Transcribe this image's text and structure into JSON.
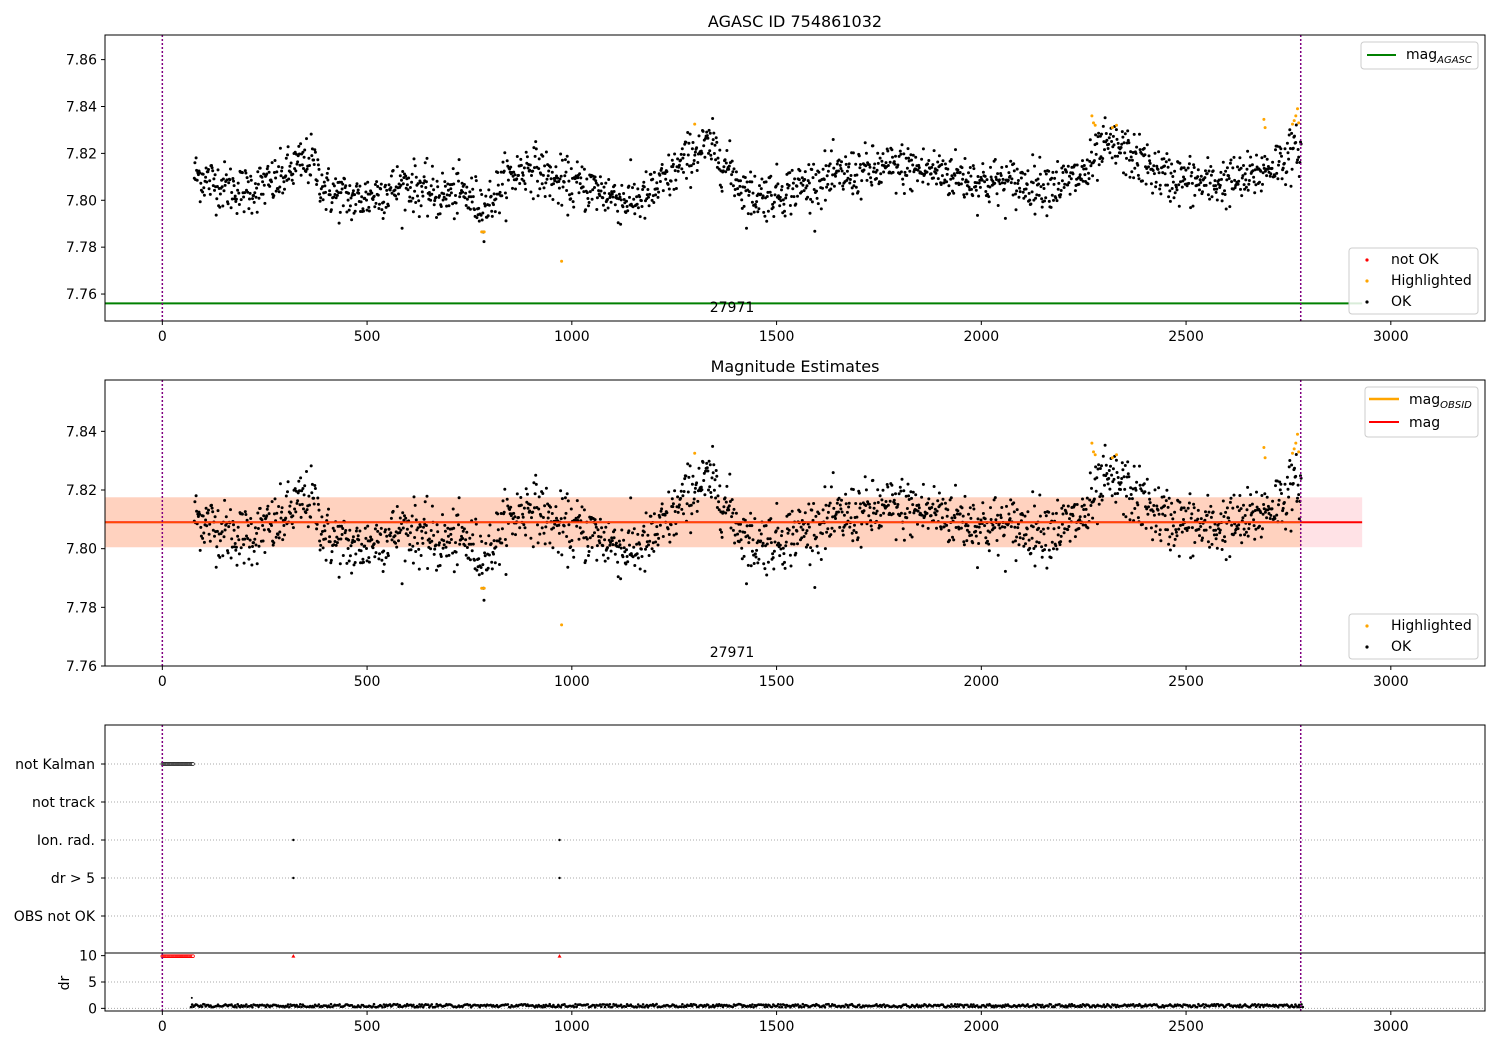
{
  "chart_data": [
    {
      "type": "scatter",
      "title": "AGASC ID 754861032",
      "xlim": [
        -140,
        3230
      ],
      "ylim": [
        7.7485,
        7.8705
      ],
      "xticks": [
        "0",
        "500",
        "1000",
        "1500",
        "2000",
        "2500",
        "3000"
      ],
      "xtick_values": [
        0,
        500,
        1000,
        1500,
        2000,
        2500,
        3000
      ],
      "yticks": [
        "7.76",
        "7.78",
        "7.80",
        "7.82",
        "7.84",
        "7.86"
      ],
      "ytick_values": [
        7.76,
        7.78,
        7.8,
        7.82,
        7.84,
        7.86
      ],
      "obsid_label": "27971",
      "obsid_label_x": 1390,
      "vlines": [
        0,
        2780
      ],
      "mag_agasc": 7.756,
      "legend_lines": [
        {
          "label": "mag",
          "sub": "AGASC",
          "color": "#008000"
        }
      ],
      "legend_points": [
        {
          "label": "not OK",
          "color": "#ff0000"
        },
        {
          "label": "Highlighted",
          "color": "#ffa500"
        },
        {
          "label": "OK",
          "color": "#000000"
        }
      ]
    },
    {
      "type": "scatter",
      "title": "Magnitude Estimates",
      "xlim": [
        -140,
        3230
      ],
      "ylim": [
        7.76,
        7.8575
      ],
      "xticks": [
        "0",
        "500",
        "1000",
        "1500",
        "2000",
        "2500",
        "3000"
      ],
      "xtick_values": [
        0,
        500,
        1000,
        1500,
        2000,
        2500,
        3000
      ],
      "yticks": [
        "7.76",
        "7.78",
        "7.80",
        "7.82",
        "7.84"
      ],
      "ytick_values": [
        7.76,
        7.78,
        7.8,
        7.82,
        7.84
      ],
      "obsid_label": "27971",
      "obsid_label_x": 1390,
      "vlines": [
        0,
        2780
      ],
      "mag": 7.809,
      "band": [
        7.8005,
        7.8175
      ],
      "band_x": [
        -140,
        2930
      ],
      "legend_lines": [
        {
          "label": "mag",
          "sub": "OBSID",
          "color": "#ffa500"
        },
        {
          "label": "mag",
          "sub": "",
          "color": "#ff0000"
        }
      ],
      "legend_points": [
        {
          "label": "Highlighted",
          "color": "#ffa500"
        },
        {
          "label": "OK",
          "color": "#000000"
        }
      ]
    },
    {
      "type": "scatter",
      "title": "",
      "xlim": [
        -140,
        3230
      ],
      "xticks": [
        "0",
        "500",
        "1000",
        "1500",
        "2000",
        "2500",
        "3000"
      ],
      "xtick_values": [
        0,
        500,
        1000,
        1500,
        2000,
        2500,
        3000
      ],
      "flags": [
        "not Kalman",
        "not track",
        "Ion. rad.",
        "dr > 5",
        "OBS not OK"
      ],
      "flag_points": {
        "not Kalman": {
          "from": 0,
          "to": 75
        },
        "Ion. rad.": [
          320,
          970
        ],
        "dr > 5": [
          320,
          970
        ]
      },
      "vlines": [
        0,
        2780
      ],
      "dr_ylabel": "dr",
      "dr_yticks": [
        "0",
        "5",
        "10"
      ],
      "dr_ytick_values": [
        0,
        5,
        10
      ],
      "dr_ylim": [
        -0.5,
        10.5
      ],
      "dr_clipped": [
        {
          "from": 0,
          "to": 75
        },
        320,
        970
      ],
      "dr_typical": 0.5,
      "dr_range": [
        70,
        2785
      ]
    }
  ],
  "colors": {
    "ok": "#000000",
    "highlighted": "#ffa500",
    "not_ok": "#ff0000",
    "agasc": "#008000",
    "mag": "#ff0000",
    "band_outer": "#ffe2e6",
    "band_inner": "#ffd2bf",
    "vline": "#800080"
  }
}
